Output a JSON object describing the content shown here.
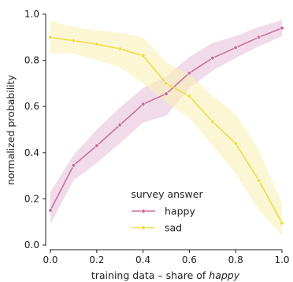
{
  "chart_data": {
    "type": "line",
    "xlabel_prefix": "training data – share of ",
    "xlabel_emph": "happy",
    "ylabel": "normalized probability",
    "xlim": [
      0,
      1
    ],
    "ylim": [
      0,
      1
    ],
    "x_ticks": [
      "0.0",
      "0.2",
      "0.4",
      "0.6",
      "0.8",
      "1.0"
    ],
    "y_ticks": [
      "0.0",
      "0.2",
      "0.4",
      "0.6",
      "0.8",
      "1.0"
    ],
    "grid": false,
    "legend": {
      "title": "survey answer",
      "placement": "lower-center"
    },
    "x": [
      0.0,
      0.1,
      0.2,
      0.3,
      0.4,
      0.5,
      0.6,
      0.7,
      0.8,
      0.9,
      1.0
    ],
    "series": [
      {
        "name": "happy",
        "color": "#cc6f9f",
        "band_color": "#e8c3da",
        "values": [
          0.15,
          0.345,
          0.43,
          0.52,
          0.61,
          0.655,
          0.745,
          0.81,
          0.855,
          0.9,
          0.94
        ],
        "lower": [
          0.09,
          0.28,
          0.355,
          0.44,
          0.53,
          0.56,
          0.68,
          0.755,
          0.81,
          0.86,
          0.905
        ],
        "upper": [
          0.23,
          0.39,
          0.5,
          0.595,
          0.68,
          0.73,
          0.815,
          0.875,
          0.905,
          0.945,
          0.975
        ]
      },
      {
        "name": "sad",
        "color": "#eedd44",
        "band_color": "#f8f0b8",
        "values": [
          0.9,
          0.885,
          0.87,
          0.85,
          0.82,
          0.7,
          0.645,
          0.535,
          0.44,
          0.28,
          0.095
        ],
        "lower": [
          0.83,
          0.83,
          0.8,
          0.77,
          0.7,
          0.62,
          0.55,
          0.43,
          0.31,
          0.15,
          0.04
        ],
        "upper": [
          0.97,
          0.945,
          0.93,
          0.92,
          0.9,
          0.79,
          0.74,
          0.645,
          0.57,
          0.41,
          0.18
        ]
      }
    ]
  }
}
